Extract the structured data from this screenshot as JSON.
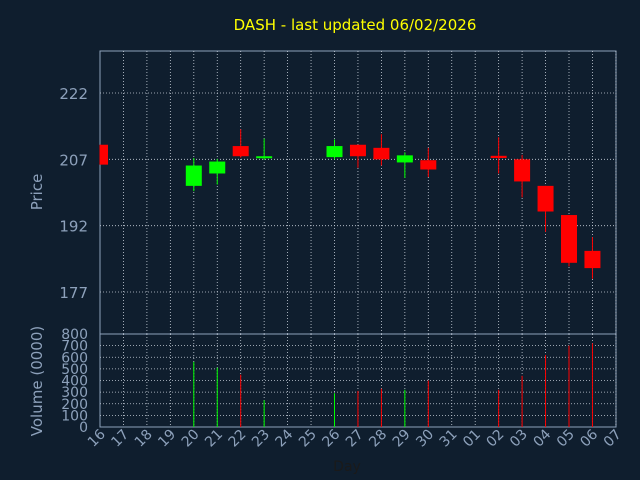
{
  "colors": {
    "background": "#0f1e2e",
    "axis": "#8da1bb",
    "grid": "#c8d0da",
    "title": "#ffff00",
    "up": "#00ff00",
    "down": "#ff0000"
  },
  "chart_data": {
    "type": "candlestick",
    "title": "DASH - last updated 06/02/2026",
    "xlabel": "Day",
    "ylabel_price": "Price",
    "ylabel_volume": "Volume (0000)",
    "x_tick_labels": [
      "16",
      "17",
      "18",
      "19",
      "20",
      "21",
      "22",
      "23",
      "24",
      "25",
      "26",
      "27",
      "28",
      "29",
      "30",
      "31",
      "01",
      "02",
      "03",
      "04",
      "05",
      "06",
      "07"
    ],
    "price_ticks": [
      177,
      192,
      207,
      222
    ],
    "price_range": [
      167.5,
      231.5
    ],
    "volume_ticks": [
      0,
      100,
      200,
      300,
      400,
      500,
      600,
      700,
      800
    ],
    "volume_range": [
      0,
      800
    ],
    "grid": true,
    "candles": [
      {
        "day": "16",
        "open": 210.3,
        "high": 210.3,
        "low": 205.8,
        "close": 205.8,
        "volume": 0
      },
      {
        "day": "20",
        "open": 201.0,
        "high": 207.3,
        "low": 199.8,
        "close": 205.6,
        "volume": 560
      },
      {
        "day": "21",
        "open": 203.8,
        "high": 207.1,
        "low": 201.3,
        "close": 206.5,
        "volume": 510
      },
      {
        "day": "22",
        "open": 210.0,
        "high": 213.8,
        "low": 207.4,
        "close": 207.7,
        "volume": 450
      },
      {
        "day": "23",
        "open": 207.3,
        "high": 211.7,
        "low": 206.9,
        "close": 207.7,
        "volume": 230
      },
      {
        "day": "26",
        "open": 207.5,
        "high": 211.5,
        "low": 207.0,
        "close": 210.0,
        "volume": 290
      },
      {
        "day": "27",
        "open": 210.3,
        "high": 210.3,
        "low": 205.1,
        "close": 207.7,
        "volume": 310
      },
      {
        "day": "28",
        "open": 209.6,
        "high": 212.7,
        "low": 205.6,
        "close": 207.0,
        "volume": 330
      },
      {
        "day": "29",
        "open": 206.3,
        "high": 208.6,
        "low": 202.8,
        "close": 207.9,
        "volume": 320
      },
      {
        "day": "30",
        "open": 206.8,
        "high": 209.6,
        "low": 203.0,
        "close": 204.7,
        "volume": 400
      },
      {
        "day": "02",
        "open": 207.8,
        "high": 212.0,
        "low": 203.8,
        "close": 207.3,
        "volume": 320
      },
      {
        "day": "03",
        "open": 207.0,
        "high": 208.0,
        "low": 198.4,
        "close": 202.0,
        "volume": 440
      },
      {
        "day": "04",
        "open": 201.0,
        "high": 201.0,
        "low": 190.6,
        "close": 195.2,
        "volume": 620
      },
      {
        "day": "05",
        "open": 194.4,
        "high": 194.4,
        "low": 182.8,
        "close": 183.6,
        "volume": 700
      },
      {
        "day": "06",
        "open": 186.3,
        "high": 189.4,
        "low": 180.0,
        "close": 182.4,
        "volume": 720
      }
    ]
  }
}
